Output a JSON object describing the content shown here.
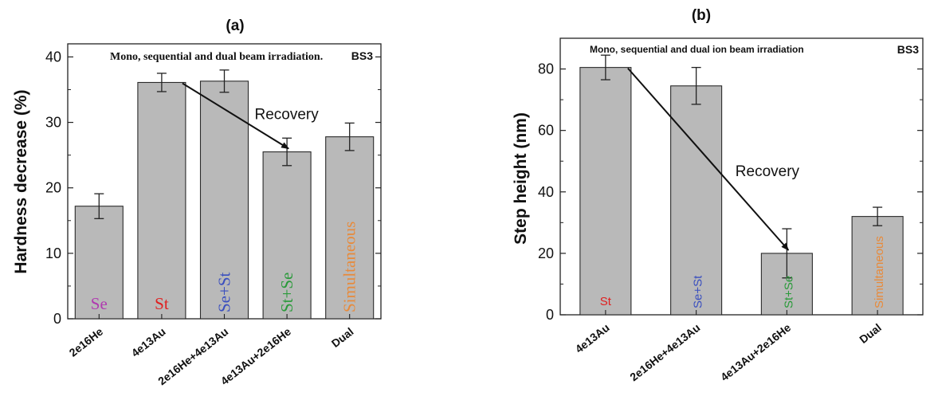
{
  "chart_data": [
    {
      "panel_label": "(a)",
      "type": "bar",
      "title": "Mono, sequential and dual beam irradiation.",
      "tag": "BS3",
      "xlabel": "",
      "ylabel": "Hardness decrease (%)",
      "ylim": [
        0,
        42
      ],
      "yticks": [
        0,
        10,
        20,
        30,
        40
      ],
      "categories": [
        "2e16He",
        "4e13Au",
        "2e16He+4e13Au",
        "4e13Au+2e16He",
        "Dual"
      ],
      "values": [
        17.2,
        36.1,
        36.3,
        25.5,
        27.8
      ],
      "errors": [
        1.9,
        1.4,
        1.7,
        2.1,
        2.1
      ],
      "bar_labels": [
        "Se",
        "St",
        "Se+St",
        "St+Se",
        "Simultaneous"
      ],
      "bar_label_colors": [
        "#b03ab0",
        "#e02020",
        "#3a4fbf",
        "#2a9a3a",
        "#e88a3a"
      ],
      "annotation": {
        "text": "Recovery",
        "from_category": 1,
        "to_category": 3
      },
      "grid": false
    },
    {
      "panel_label": "(b)",
      "type": "bar",
      "title": "Mono, sequential and dual ion beam irradiation",
      "tag": "BS3",
      "xlabel": "",
      "ylabel": "Step height (nm)",
      "ylim": [
        0,
        90
      ],
      "yticks": [
        0,
        20,
        40,
        60,
        80
      ],
      "categories": [
        "4e13Au",
        "2e16He+4e13Au",
        "4e13Au+2e16He",
        "Dual"
      ],
      "values": [
        80.5,
        74.5,
        20.0,
        32.0
      ],
      "errors": [
        4.0,
        6.0,
        8.0,
        3.0
      ],
      "bar_labels": [
        "St",
        "Se+St",
        "St+Se",
        "Simultaneous"
      ],
      "bar_label_colors": [
        "#e02020",
        "#3a4fbf",
        "#2a9a3a",
        "#e88a3a"
      ],
      "annotation": {
        "text": "Recovery",
        "from_category": 0,
        "to_category": 2
      },
      "grid": false
    }
  ]
}
